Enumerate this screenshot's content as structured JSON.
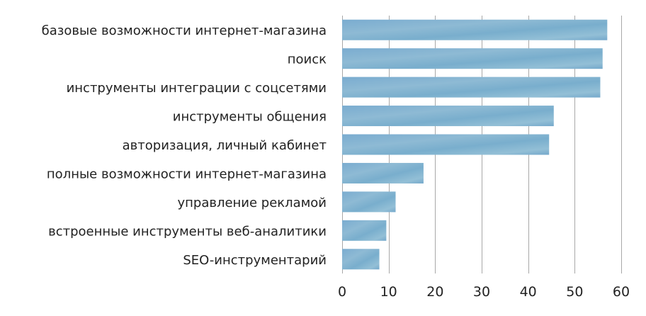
{
  "chart_data": {
    "type": "bar",
    "orientation": "horizontal",
    "title": "",
    "xlabel": "",
    "ylabel": "",
    "categories": [
      "базовые возможности интернет-магазина",
      "поиск",
      "инструменты интеграции с соцсетями",
      "инструменты общения",
      "авторизация, личный кабинет",
      "полные возможности интернет-магазина",
      "управление рекламой",
      "встроенные инструменты веб-аналитики",
      "SEO-инструментарий"
    ],
    "values": [
      57,
      56,
      55.5,
      45.5,
      44.5,
      17.5,
      11.5,
      9.5,
      8
    ],
    "xlim": [
      0,
      60
    ],
    "xticks": [
      "0",
      "10",
      "20",
      "30",
      "40",
      "50",
      "60"
    ],
    "grid": "vertical",
    "colors": {
      "bar": "#7fb0cf",
      "bar_light": "#9cc3d8",
      "bar_dark": "#6aa0c4",
      "grid": "#a8a8a8",
      "text": "#222222"
    }
  }
}
